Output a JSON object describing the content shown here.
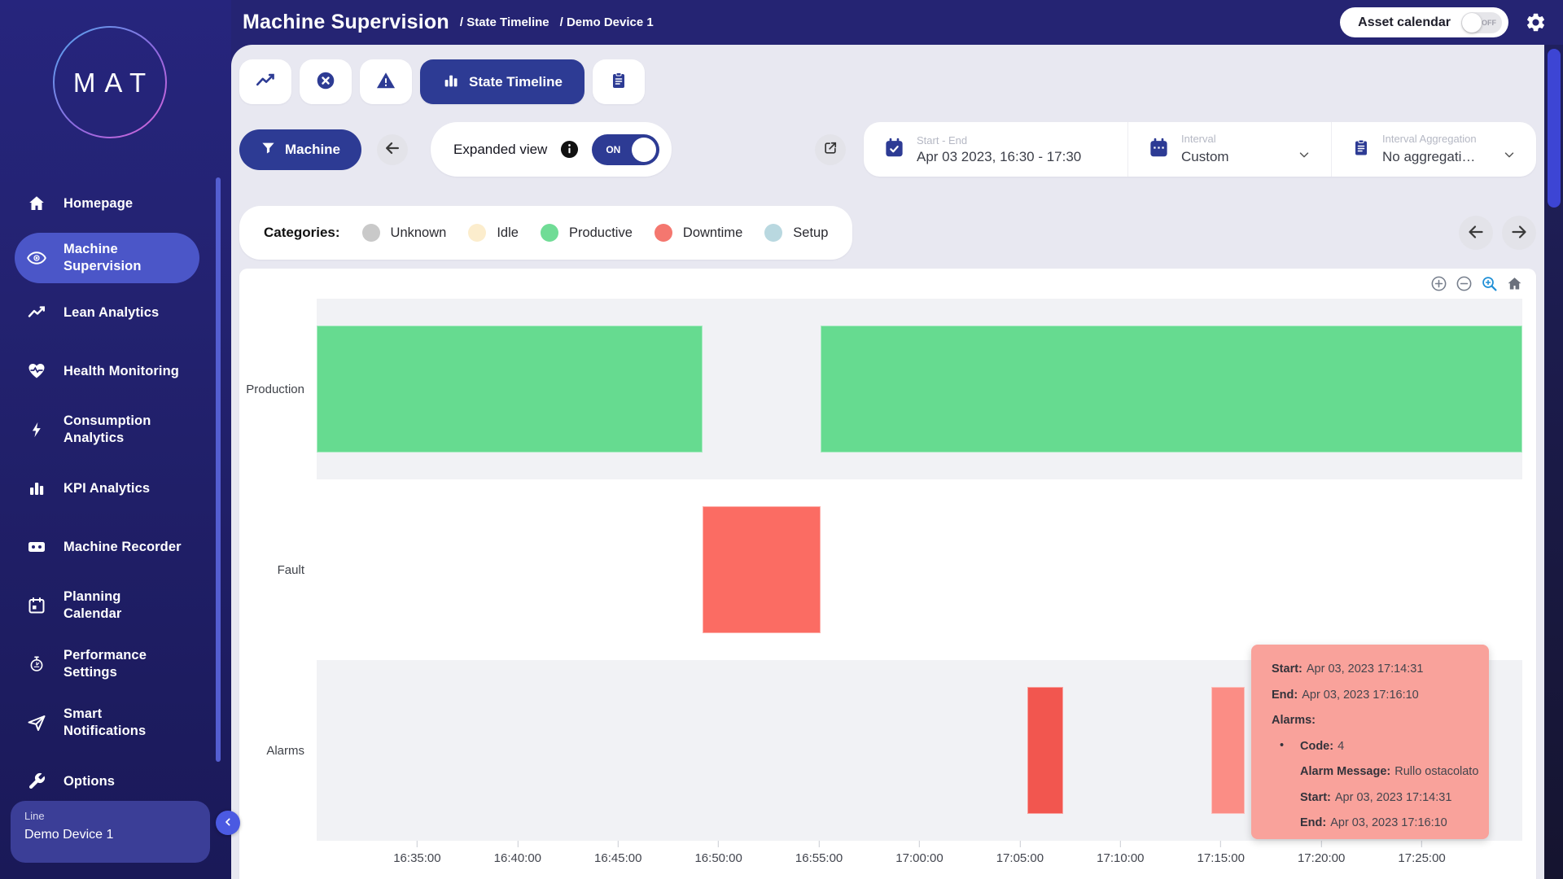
{
  "sidebar": {
    "logo_text": "MAT",
    "items": [
      {
        "label": "Homepage",
        "active": false
      },
      {
        "label": "Machine Supervision",
        "active": true
      },
      {
        "label": "Lean Analytics",
        "active": false
      },
      {
        "label": "Health Monitoring",
        "active": false
      },
      {
        "label": "Consumption Analytics",
        "active": false
      },
      {
        "label": "KPI Analytics",
        "active": false
      },
      {
        "label": "Machine Recorder",
        "active": false
      },
      {
        "label": "Planning Calendar",
        "active": false
      },
      {
        "label": "Performance Settings",
        "active": false
      },
      {
        "label": "Smart Notifications",
        "active": false
      },
      {
        "label": "Options",
        "active": false
      }
    ],
    "device_card": {
      "line_label": "Line",
      "device_name": "Demo Device 1"
    }
  },
  "header": {
    "title": "Machine Supervision",
    "breadcrumb_1": "/ State Timeline",
    "breadcrumb_2": "/ Demo Device 1",
    "asset_calendar_label": "Asset calendar",
    "asset_calendar_state": "OFF"
  },
  "tabs": {
    "state_timeline_label": "State Timeline"
  },
  "filters": {
    "machine_button_label": "Machine",
    "expanded_view_label": "Expanded view",
    "expanded_view_state": "ON",
    "start_end_label": "Start - End",
    "start_end_value": "Apr 03 2023, 16:30 - 17:30",
    "interval_label": "Interval",
    "interval_value": "Custom",
    "aggregation_label": "Interval Aggregation",
    "aggregation_value": "No aggregati…"
  },
  "legend": {
    "title": "Categories:",
    "items": [
      {
        "label": "Unknown",
        "color": "#c9c9c9"
      },
      {
        "label": "Idle",
        "color": "#fcedcd"
      },
      {
        "label": "Productive",
        "color": "#70dc96"
      },
      {
        "label": "Downtime",
        "color": "#f4776f"
      },
      {
        "label": "Setup",
        "color": "#b9d8e0"
      }
    ]
  },
  "chart_toolbar": {
    "icons": [
      "zoom-in-icon",
      "zoom-out-icon",
      "box-zoom-icon",
      "reset-axes-icon"
    ]
  },
  "chart_data": {
    "type": "timeline",
    "x_range": [
      "16:30:00",
      "17:30:00"
    ],
    "x_ticks": [
      "16:35:00",
      "16:40:00",
      "16:45:00",
      "16:50:00",
      "16:55:00",
      "17:00:00",
      "17:05:00",
      "17:10:00",
      "17:15:00",
      "17:20:00",
      "17:25:00"
    ],
    "rows": [
      "Production",
      "Fault",
      "Alarms"
    ],
    "segments": [
      {
        "row": "Production",
        "category": "Productive",
        "start": "16:30:00",
        "end": "16:49:12",
        "color": "#66db90"
      },
      {
        "row": "Production",
        "category": "Productive",
        "start": "16:55:05",
        "end": "17:30:00",
        "color": "#66db90"
      },
      {
        "row": "Fault",
        "category": "Downtime",
        "start": "16:49:12",
        "end": "16:55:05",
        "color": "#fb6c63"
      },
      {
        "row": "Alarms",
        "category": "Alarm",
        "start": "17:05:22",
        "end": "17:07:09",
        "color": "#f2564f"
      },
      {
        "row": "Alarms",
        "category": "Alarm",
        "start": "17:14:31",
        "end": "17:16:10",
        "color": "#fb8d85",
        "hovered": true
      }
    ],
    "grid": false,
    "legend_position": "top-left-card"
  },
  "tooltip": {
    "start_label": "Start:",
    "start_value": "Apr 03, 2023 17:14:31",
    "end_label": "End:",
    "end_value": "Apr 03, 2023 17:16:10",
    "alarms_label": "Alarms:",
    "code_label": "Code:",
    "code_value": "4",
    "message_label": "Alarm Message:",
    "message_value": "Rullo ostacolato",
    "alarm_start_label": "Start:",
    "alarm_start_value": "Apr 03, 2023 17:14:31",
    "alarm_end_label": "End:",
    "alarm_end_value": "Apr 03, 2023 17:16:10"
  }
}
